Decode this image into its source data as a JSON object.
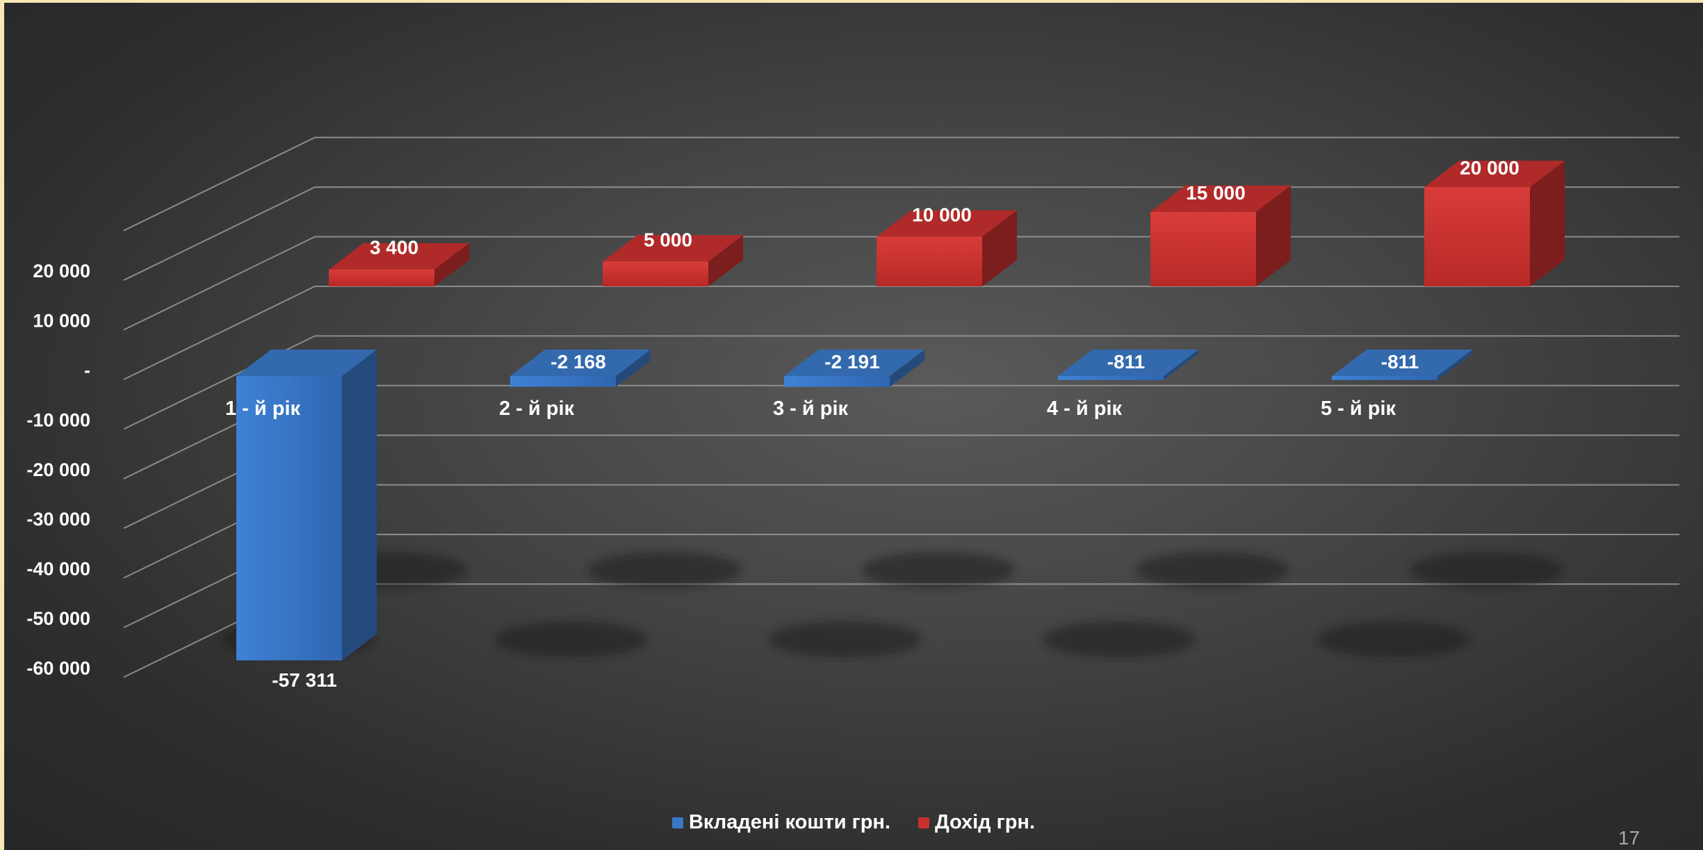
{
  "page_number": "17",
  "colors": {
    "invested": "#3a78c6",
    "income": "#c8302f",
    "grid": "#9a9a9a",
    "text": "#ffffff"
  },
  "chart_data": {
    "type": "bar",
    "style": "3d-clustered-column",
    "title": "",
    "categories": [
      "1 - й рік",
      "2 - й рік",
      "3 - й рік",
      "4 - й рік",
      "5 - й рік"
    ],
    "series": [
      {
        "name": "Вкладені кошти грн.",
        "values": [
          -57311,
          -2168,
          -2191,
          -811,
          -811
        ],
        "labels": [
          "-57 311",
          "-2 168",
          "-2 191",
          "-811",
          "-811"
        ],
        "color": "#3a78c6"
      },
      {
        "name": "Дохід грн.",
        "values": [
          3400,
          5000,
          10000,
          15000,
          20000
        ],
        "labels": [
          "3 400",
          "5 000",
          "10 000",
          "15 000",
          "20 000"
        ],
        "color": "#c8302f"
      }
    ],
    "y_ticks": [
      20000,
      10000,
      0,
      -10000,
      -20000,
      -30000,
      -40000,
      -50000,
      -60000
    ],
    "y_tick_labels": [
      "20 000",
      "10 000",
      "-",
      "-10 000",
      "-20 000",
      "-30 000",
      "-40 000",
      "-50 000",
      "-60 000"
    ],
    "ylim": [
      -60000,
      30000
    ],
    "grid": true,
    "legend_position": "bottom"
  }
}
